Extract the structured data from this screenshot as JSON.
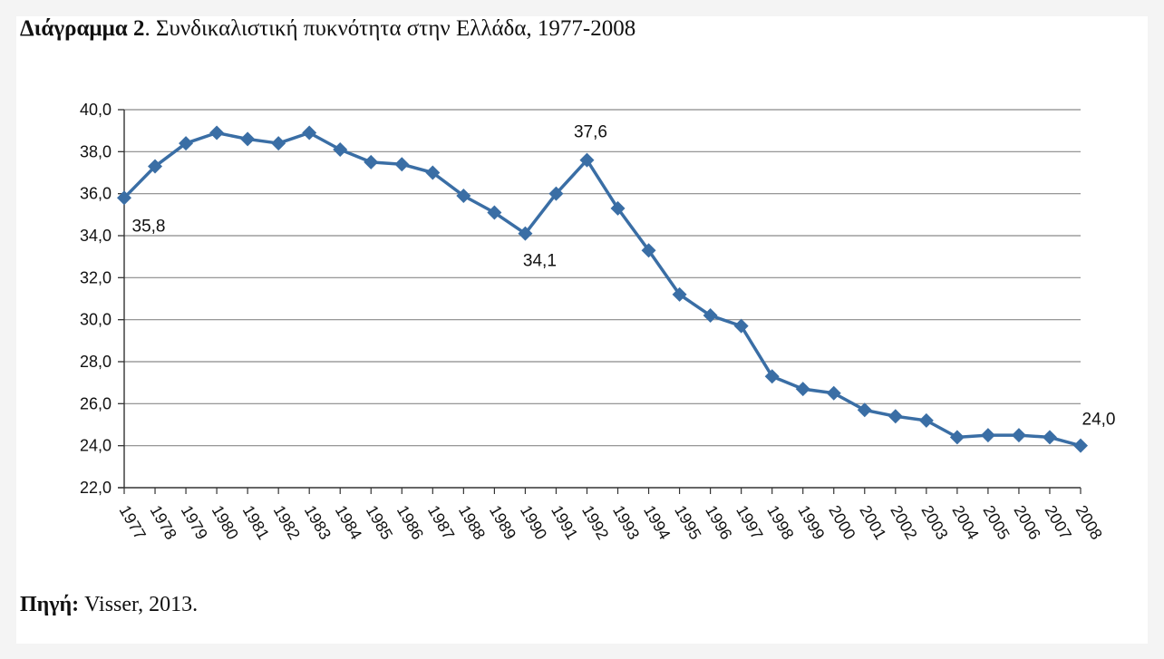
{
  "figure": {
    "title_prefix": "Διάγραμμα 2",
    "title_rest": ". Συνδικαλιστική πυκνότητα στην Ελλάδα, 1977-2008",
    "source_label": "Πηγή:",
    "source_text": " Visser, 2013."
  },
  "chart_data": {
    "type": "line",
    "title": "Διάγραμμα 2. Συνδικαλιστική πυκνότητα στην Ελλάδα, 1977-2008",
    "xlabel": "",
    "ylabel": "",
    "categories": [
      "1977",
      "1978",
      "1979",
      "1980",
      "1981",
      "1982",
      "1983",
      "1984",
      "1985",
      "1986",
      "1987",
      "1988",
      "1989",
      "1990",
      "1991",
      "1992",
      "1993",
      "1994",
      "1995",
      "1996",
      "1997",
      "1998",
      "1999",
      "2000",
      "2001",
      "2002",
      "2003",
      "2004",
      "2005",
      "2006",
      "2007",
      "2008"
    ],
    "series": [
      {
        "name": "",
        "color": "#3a6ea5",
        "marker": "diamond",
        "values": [
          35.8,
          37.3,
          38.4,
          38.9,
          38.6,
          38.4,
          38.9,
          38.1,
          37.5,
          37.4,
          37.0,
          35.9,
          35.1,
          34.1,
          36.0,
          37.6,
          35.3,
          33.3,
          31.2,
          30.2,
          29.7,
          27.3,
          26.7,
          26.5,
          25.7,
          25.4,
          25.2,
          24.4,
          24.5,
          24.5,
          24.4,
          24.0
        ]
      }
    ],
    "ylim": [
      22.0,
      40.0
    ],
    "yticks": [
      "22,0",
      "24,0",
      "26,0",
      "28,0",
      "30,0",
      "32,0",
      "34,0",
      "36,0",
      "38,0",
      "40,0"
    ],
    "grid": "horizontal",
    "legend": "none",
    "data_labels": [
      {
        "category": "1977",
        "text": "35,8"
      },
      {
        "category": "1990",
        "text": "34,1"
      },
      {
        "category": "1992",
        "text": "37,6"
      },
      {
        "category": "2008",
        "text": "24,0"
      }
    ]
  }
}
